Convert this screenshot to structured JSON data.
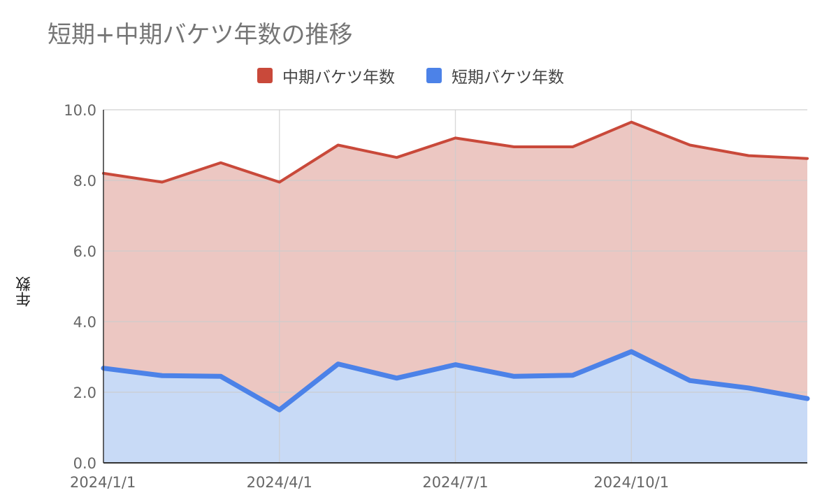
{
  "colors": {
    "medium": "#c9493a",
    "medium_fill": "#ecc7c2",
    "short": "#4c82e8",
    "short_fill": "#c8daf6",
    "grid": "#cccccc",
    "axis_text": "#666666"
  },
  "chart_data": {
    "type": "area",
    "title": "短期+中期バケツ年数の推移",
    "ylabel": "年数",
    "xlabel": "",
    "stacked": false,
    "grid": true,
    "legend_position": "top",
    "ylim": [
      0,
      10
    ],
    "yticks": [
      "0.0",
      "2.0",
      "4.0",
      "6.0",
      "8.0",
      "10.0"
    ],
    "xticks": [
      "2024/1/1",
      "2024/4/1",
      "2024/7/1",
      "2024/10/1"
    ],
    "x": [
      "2024/1/1",
      "2024/2/1",
      "2024/3/1",
      "2024/4/1",
      "2024/5/1",
      "2024/6/1",
      "2024/7/1",
      "2024/8/1",
      "2024/9/1",
      "2024/10/1",
      "2024/11/1",
      "2024/12/1",
      "2025/1/1"
    ],
    "series": [
      {
        "name": "中期バケツ年数",
        "values": [
          8.2,
          7.95,
          8.5,
          7.95,
          9.0,
          8.65,
          9.2,
          8.95,
          8.95,
          9.65,
          9.0,
          8.7,
          8.62
        ]
      },
      {
        "name": "短期バケツ年数",
        "values": [
          2.68,
          2.47,
          2.45,
          1.5,
          2.8,
          2.4,
          2.78,
          2.45,
          2.48,
          3.15,
          2.33,
          2.12,
          1.82
        ]
      }
    ]
  }
}
